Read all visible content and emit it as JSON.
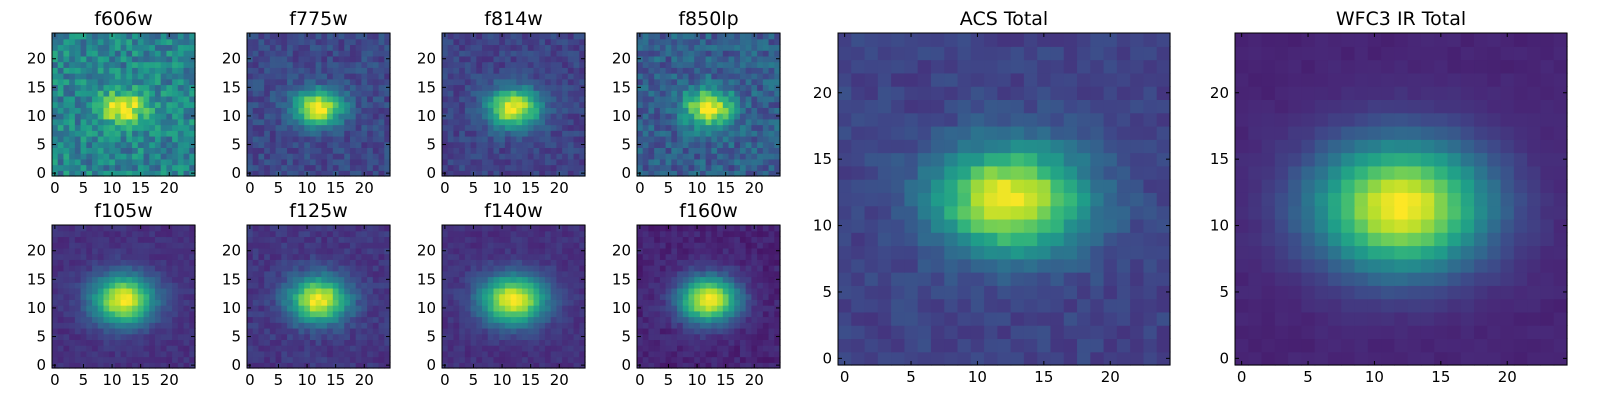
{
  "chart_data": [
    {
      "type": "heatmap",
      "title": "f606w",
      "grid_size": 25,
      "peak": [
        12,
        11.5
      ],
      "sigma": [
        3.0,
        2.0
      ],
      "noise": 0.32,
      "background": 0.45,
      "xticks": [
        0,
        5,
        10,
        15,
        20
      ],
      "yticks": [
        0,
        5,
        10,
        15,
        20
      ],
      "xlim": [
        0,
        25
      ],
      "ylim": [
        0,
        25
      ],
      "colormap": "viridis",
      "seed": 11
    },
    {
      "type": "heatmap",
      "title": "f775w",
      "grid_size": 25,
      "peak": [
        12,
        11.5
      ],
      "sigma": [
        3.0,
        2.2
      ],
      "noise": 0.16,
      "background": 0.22,
      "xticks": [
        0,
        5,
        10,
        15,
        20
      ],
      "yticks": [
        0,
        5,
        10,
        15,
        20
      ],
      "xlim": [
        0,
        25
      ],
      "ylim": [
        0,
        25
      ],
      "colormap": "viridis",
      "seed": 12
    },
    {
      "type": "heatmap",
      "title": "f814w",
      "grid_size": 25,
      "peak": [
        12,
        11.5
      ],
      "sigma": [
        3.2,
        2.4
      ],
      "noise": 0.14,
      "background": 0.2,
      "xticks": [
        0,
        5,
        10,
        15,
        20
      ],
      "yticks": [
        0,
        5,
        10,
        15,
        20
      ],
      "xlim": [
        0,
        25
      ],
      "ylim": [
        0,
        25
      ],
      "colormap": "viridis",
      "seed": 13
    },
    {
      "type": "heatmap",
      "title": "f850lp",
      "grid_size": 25,
      "peak": [
        12,
        11.5
      ],
      "sigma": [
        3.0,
        2.2
      ],
      "noise": 0.24,
      "background": 0.3,
      "xticks": [
        0,
        5,
        10,
        15,
        20
      ],
      "yticks": [
        0,
        5,
        10,
        15,
        20
      ],
      "xlim": [
        0,
        25
      ],
      "ylim": [
        0,
        25
      ],
      "colormap": "viridis",
      "seed": 14
    },
    {
      "type": "heatmap",
      "title": "f105w",
      "grid_size": 25,
      "peak": [
        12,
        11.5
      ],
      "sigma": [
        3.8,
        3.0
      ],
      "noise": 0.08,
      "background": 0.14,
      "xticks": [
        0,
        5,
        10,
        15,
        20
      ],
      "yticks": [
        0,
        5,
        10,
        15,
        20
      ],
      "xlim": [
        0,
        25
      ],
      "ylim": [
        0,
        25
      ],
      "colormap": "viridis",
      "seed": 15
    },
    {
      "type": "heatmap",
      "title": "f125w",
      "grid_size": 25,
      "peak": [
        12,
        11.5
      ],
      "sigma": [
        3.6,
        2.8
      ],
      "noise": 0.11,
      "background": 0.16,
      "xticks": [
        0,
        5,
        10,
        15,
        20
      ],
      "yticks": [
        0,
        5,
        10,
        15,
        20
      ],
      "xlim": [
        0,
        25
      ],
      "ylim": [
        0,
        25
      ],
      "colormap": "viridis",
      "seed": 16
    },
    {
      "type": "heatmap",
      "title": "f140w",
      "grid_size": 25,
      "peak": [
        12,
        11.5
      ],
      "sigma": [
        4.0,
        3.0
      ],
      "noise": 0.08,
      "background": 0.14,
      "xticks": [
        0,
        5,
        10,
        15,
        20
      ],
      "yticks": [
        0,
        5,
        10,
        15,
        20
      ],
      "xlim": [
        0,
        25
      ],
      "ylim": [
        0,
        25
      ],
      "colormap": "viridis",
      "seed": 17
    },
    {
      "type": "heatmap",
      "title": "f160w",
      "grid_size": 25,
      "peak": [
        12,
        11.5
      ],
      "sigma": [
        3.6,
        2.8
      ],
      "noise": 0.09,
      "background": 0.1,
      "xticks": [
        0,
        5,
        10,
        15,
        20
      ],
      "yticks": [
        0,
        5,
        10,
        15,
        20
      ],
      "xlim": [
        0,
        25
      ],
      "ylim": [
        0,
        25
      ],
      "colormap": "viridis",
      "seed": 18
    },
    {
      "type": "heatmap",
      "title": "ACS Total",
      "grid_size": 25,
      "peak": [
        12.5,
        12
      ],
      "sigma": [
        4.0,
        2.8
      ],
      "noise": 0.1,
      "background": 0.2,
      "xticks": [
        0,
        5,
        10,
        15,
        20
      ],
      "yticks": [
        0,
        5,
        10,
        15,
        20
      ],
      "xlim": [
        0,
        25
      ],
      "ylim": [
        0,
        25
      ],
      "colormap": "viridis",
      "seed": 21
    },
    {
      "type": "heatmap",
      "title": "WFC3 IR Total",
      "grid_size": 25,
      "peak": [
        12,
        11.5
      ],
      "sigma": [
        4.6,
        3.4
      ],
      "noise": 0.03,
      "background": 0.1,
      "xticks": [
        0,
        5,
        10,
        15,
        20
      ],
      "yticks": [
        0,
        5,
        10,
        15,
        20
      ],
      "xlim": [
        0,
        25
      ],
      "ylim": [
        0,
        25
      ],
      "colormap": "viridis",
      "seed": 22
    }
  ]
}
